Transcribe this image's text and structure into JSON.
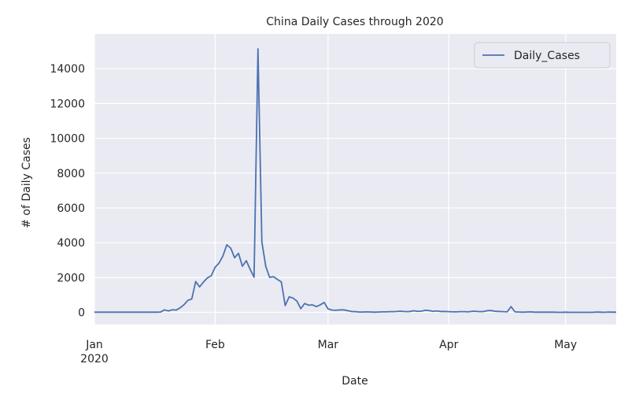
{
  "chart_data": {
    "type": "line",
    "title": "China Daily Cases through 2020",
    "xlabel": "Date",
    "ylabel": "# of Daily Cases",
    "series": [
      {
        "name": "Daily_Cases",
        "color": "#4c72b0",
        "values": [
          10,
          10,
          10,
          10,
          10,
          10,
          10,
          10,
          10,
          10,
          10,
          10,
          10,
          10,
          10,
          10,
          10,
          20,
          140,
          80,
          150,
          130,
          260,
          440,
          690,
          770,
          1770,
          1460,
          1740,
          1980,
          2100,
          2590,
          2830,
          3240,
          3880,
          3690,
          3140,
          3390,
          2650,
          2970,
          2470,
          2020,
          15140,
          4050,
          2640,
          2010,
          2050,
          1890,
          1750,
          390,
          890,
          820,
          650,
          210,
          510,
          410,
          430,
          330,
          430,
          570,
          200,
          130,
          120,
          140,
          140,
          100,
          50,
          40,
          20,
          20,
          30,
          20,
          10,
          20,
          30,
          30,
          40,
          40,
          60,
          60,
          40,
          50,
          90,
          60,
          70,
          120,
          100,
          60,
          80,
          50,
          50,
          40,
          30,
          30,
          40,
          40,
          30,
          60,
          60,
          40,
          50,
          100,
          100,
          60,
          50,
          40,
          30,
          330,
          30,
          20,
          10,
          20,
          30,
          10,
          10,
          10,
          10,
          10,
          10,
          0,
          0,
          10,
          0,
          0,
          0,
          0,
          0,
          0,
          0,
          20,
          10,
          0,
          20,
          10,
          10
        ]
      }
    ],
    "xlim": [
      0,
      134
    ],
    "xticks": [
      {
        "value": 0,
        "label": "Jan\n2020"
      },
      {
        "value": 31,
        "label": "Feb"
      },
      {
        "value": 60,
        "label": "Mar"
      },
      {
        "value": 91,
        "label": "Apr"
      },
      {
        "value": 121,
        "label": "May"
      }
    ],
    "ylim": [
      -700,
      16000
    ],
    "yticks": [
      0,
      2000,
      4000,
      6000,
      8000,
      10000,
      12000,
      14000
    ],
    "grid": true,
    "legend": "upper right"
  }
}
